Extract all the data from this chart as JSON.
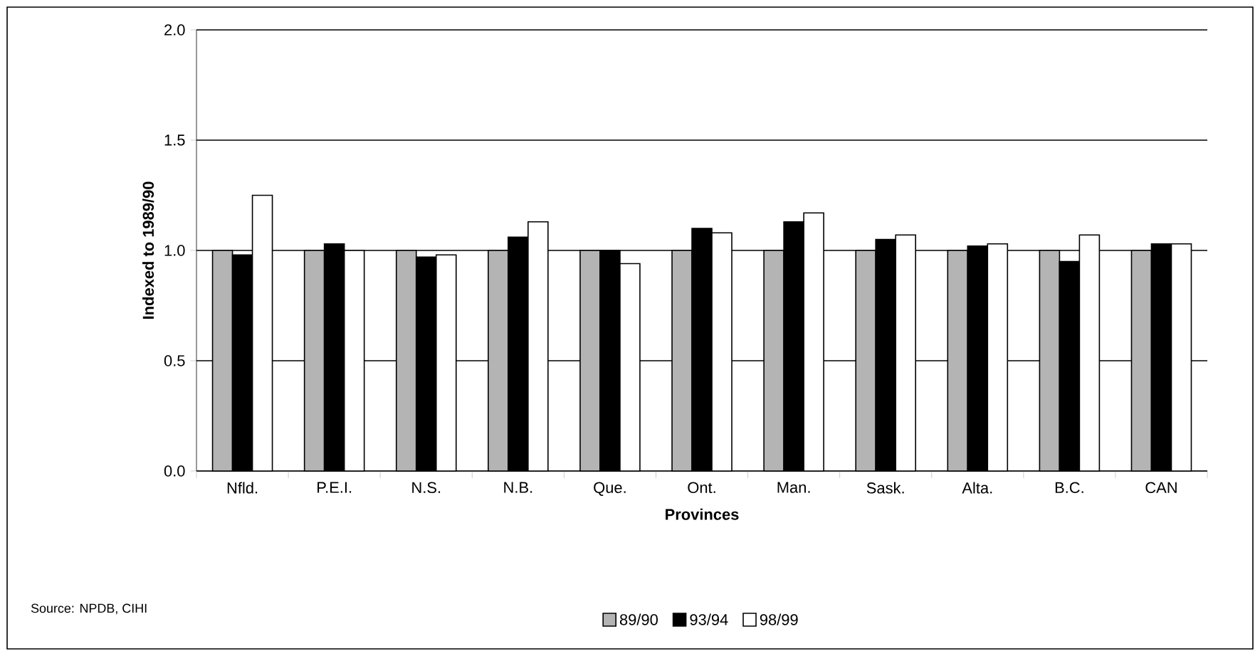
{
  "chart_data": {
    "type": "bar",
    "xlabel": "Provinces",
    "ylabel": "Indexed to 1989/90",
    "categories": [
      "Nfld.",
      "P.E.I.",
      "N.S.",
      "N.B.",
      "Que.",
      "Ont.",
      "Man.",
      "Sask.",
      "Alta.",
      "B.C.",
      "CAN"
    ],
    "series": [
      {
        "name": "89/90",
        "color": "#b4b4b4",
        "values": [
          1.0,
          1.0,
          1.0,
          1.0,
          1.0,
          1.0,
          1.0,
          1.0,
          1.0,
          1.0,
          1.0
        ]
      },
      {
        "name": "93/94",
        "color": "#000000",
        "values": [
          0.98,
          1.03,
          0.97,
          1.06,
          1.0,
          1.1,
          1.13,
          1.05,
          1.02,
          0.95,
          1.03
        ]
      },
      {
        "name": "98/99",
        "color": "#ffffff",
        "values": [
          1.25,
          1.0,
          0.98,
          1.13,
          0.94,
          1.08,
          1.17,
          1.07,
          1.03,
          1.07,
          1.03
        ]
      }
    ],
    "ylim": [
      0,
      2
    ],
    "yticks": [
      {
        "value": 0,
        "label": "0.0"
      },
      {
        "value": 0.5,
        "label": "0.5"
      },
      {
        "value": 1,
        "label": "1.0"
      },
      {
        "value": 1.5,
        "label": "1.5"
      },
      {
        "value": 2,
        "label": "2.0"
      }
    ],
    "grid": "y",
    "legend": "bottom",
    "annotations": [
      "Source: NPDB, CIHI"
    ]
  }
}
